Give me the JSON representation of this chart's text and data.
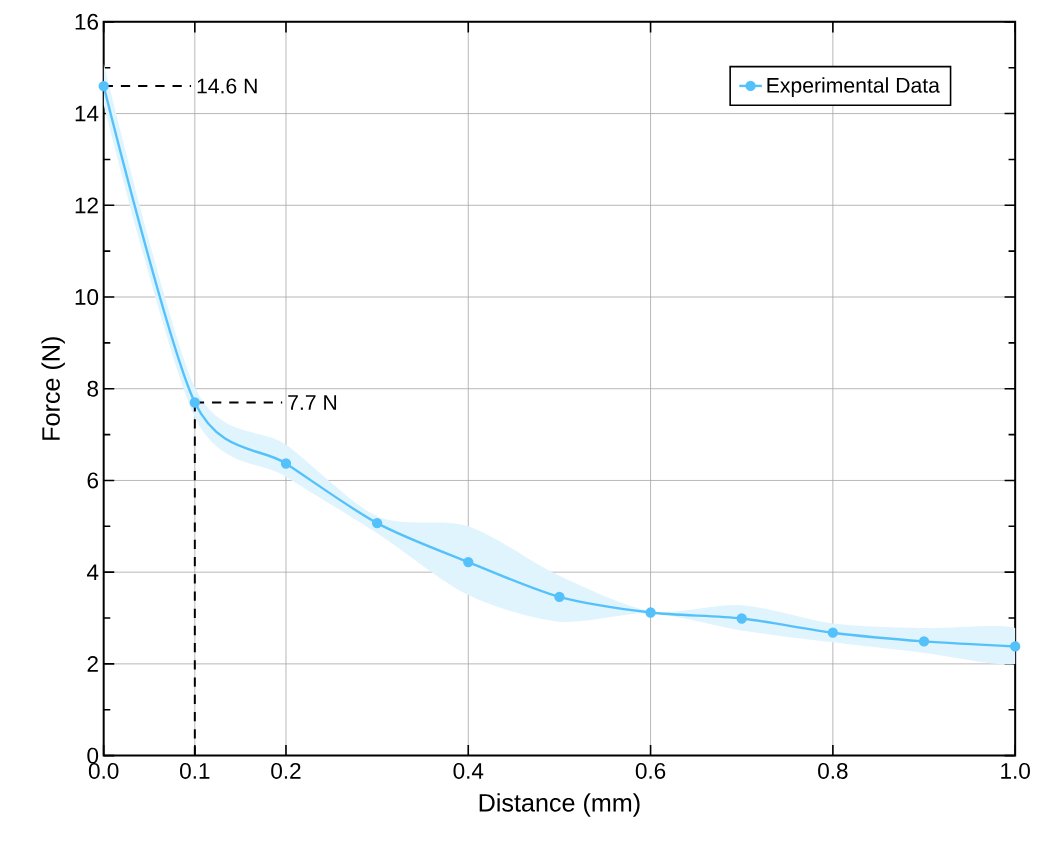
{
  "chart_data": {
    "type": "line",
    "xlabel": "Distance (mm)",
    "ylabel": "Force (N)",
    "x": [
      0,
      0.1,
      0.2,
      0.3,
      0.4,
      0.5,
      0.6,
      0.7,
      0.8,
      0.9,
      1.0
    ],
    "series": [
      {
        "name": "Experimental Data",
        "color": "#55c1fb",
        "values": [
          14.6,
          7.7,
          6.37,
          5.07,
          4.22,
          3.46,
          3.12,
          2.99,
          2.68,
          2.49,
          2.38
        ],
        "lower": [
          14.2,
          7.38,
          6.08,
          4.85,
          3.5,
          2.92,
          3.1,
          2.73,
          2.47,
          2.24,
          2.0
        ],
        "upper": [
          15.1,
          8.03,
          6.78,
          5.22,
          5.0,
          3.92,
          3.15,
          3.28,
          2.88,
          2.78,
          2.78
        ]
      }
    ],
    "xlim": [
      0,
      1.0
    ],
    "ylim": [
      0,
      16
    ],
    "xticks": [
      {
        "value": 0,
        "label": "0.0"
      },
      {
        "value": 0.1,
        "label": "0.1"
      },
      {
        "value": 0.2,
        "label": "0.2"
      },
      {
        "value": 0.4,
        "label": "0.4"
      },
      {
        "value": 0.6,
        "label": "0.6"
      },
      {
        "value": 0.8,
        "label": "0.8"
      },
      {
        "value": 1.0,
        "label": "1.0"
      }
    ],
    "yticks": [
      0,
      2,
      4,
      6,
      8,
      10,
      12,
      14,
      16
    ],
    "annotations": [
      {
        "text": "14.6 N",
        "x": 0,
        "y": 14.6
      },
      {
        "text": "7.7 N",
        "x": 0.1,
        "y": 7.7
      }
    ],
    "ref_lines": [
      {
        "axis": "x",
        "value": 0.1,
        "color": "#000000",
        "line_style": "dashed"
      }
    ],
    "grid": true,
    "legend": "top right",
    "marker": "circle",
    "line_style": "solid"
  }
}
